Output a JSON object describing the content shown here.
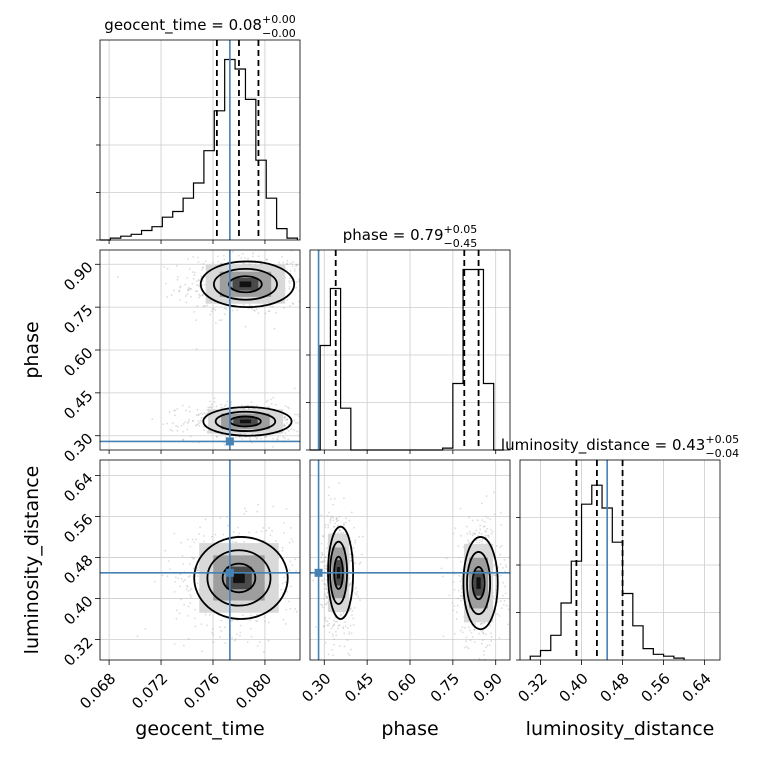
{
  "chart_data": {
    "type": "corner",
    "parameters": [
      "geocent_time",
      "phase",
      "luminosity_distance"
    ],
    "injected_values": {
      "geocent_time": 0.0773,
      "phase": 0.28,
      "luminosity_distance": 0.45
    },
    "axes": {
      "geocent_time": {
        "range": [
          0.0673,
          0.0827
        ],
        "ticks": [
          0.068,
          0.072,
          0.076,
          0.08
        ],
        "tick_labels": [
          "0.068",
          "0.072",
          "0.076",
          "0.080"
        ],
        "xlabel": "geocent_time"
      },
      "phase": {
        "range": [
          0.25,
          0.95
        ],
        "ticks": [
          0.3,
          0.45,
          0.6,
          0.75,
          0.9
        ],
        "tick_labels": [
          "0.30",
          "0.45",
          "0.60",
          "0.75",
          "0.90"
        ],
        "xlabel": "phase",
        "ylabel": "phase"
      },
      "luminosity_distance": {
        "range": [
          0.28,
          0.67
        ],
        "ticks": [
          0.32,
          0.4,
          0.48,
          0.56,
          0.64
        ],
        "tick_labels": [
          "0.32",
          "0.40",
          "0.48",
          "0.56",
          "0.64"
        ],
        "xlabel": "luminosity_distance",
        "ylabel": "luminosity_distance"
      }
    },
    "diagonal": [
      {
        "parameter": "geocent_time",
        "title_main": "geocent_time = 0.08",
        "title_sup": "+0.00",
        "title_sub": "−0.00",
        "quantiles": [
          0.0763,
          0.078,
          0.0795
        ],
        "hist_edges": [
          0.0673,
          0.0681,
          0.0689,
          0.0697,
          0.0705,
          0.0713,
          0.0721,
          0.0729,
          0.0737,
          0.0745,
          0.0753,
          0.0761,
          0.0769,
          0.0777,
          0.0785,
          0.0793,
          0.0801,
          0.0809,
          0.0817,
          0.0825
        ],
        "hist_counts": [
          0,
          0.01,
          0.02,
          0.03,
          0.05,
          0.07,
          0.12,
          0.15,
          0.22,
          0.3,
          0.47,
          0.68,
          0.95,
          0.9,
          0.74,
          0.42,
          0.22,
          0.06,
          0.01
        ]
      },
      {
        "parameter": "phase",
        "title_main": "phase = 0.79",
        "title_sup": "+0.05",
        "title_sub": "−0.45",
        "quantiles": [
          0.34,
          0.79,
          0.84
        ],
        "hist_edges": [
          0.25,
          0.2857,
          0.3214,
          0.3571,
          0.3929,
          0.4286,
          0.4643,
          0.5,
          0.5357,
          0.5714,
          0.6071,
          0.6429,
          0.6786,
          0.7143,
          0.75,
          0.7857,
          0.8214,
          0.8571,
          0.8929,
          0.9286
        ],
        "hist_counts": [
          0,
          0.55,
          0.85,
          0.22,
          0,
          0,
          0,
          0,
          0,
          0,
          0,
          0,
          0,
          0.01,
          0.35,
          0.95,
          0.95,
          0.35,
          0
        ]
      },
      {
        "parameter": "luminosity_distance",
        "title_main": "luminosity_distance = 0.43",
        "title_sup": "+0.05",
        "title_sub": "−0.04",
        "quantiles": [
          0.39,
          0.43,
          0.48
        ],
        "hist_edges": [
          0.3,
          0.32,
          0.34,
          0.36,
          0.38,
          0.4,
          0.42,
          0.44,
          0.46,
          0.48,
          0.5,
          0.52,
          0.54,
          0.56,
          0.58,
          0.6
        ],
        "hist_counts": [
          0.02,
          0.05,
          0.13,
          0.3,
          0.52,
          0.82,
          0.92,
          0.8,
          0.62,
          0.35,
          0.18,
          0.06,
          0.03,
          0.02,
          0.01
        ]
      }
    ],
    "offdiagonal": [
      {
        "x": "geocent_time",
        "y": "phase",
        "blobs": [
          {
            "cx": 0.0785,
            "cy": 0.83,
            "sx": 0.0018,
            "sy": 0.04
          },
          {
            "cx": 0.0785,
            "cy": 0.35,
            "sx": 0.0017,
            "sy": 0.025
          }
        ]
      },
      {
        "x": "geocent_time",
        "y": "luminosity_distance",
        "blobs": [
          {
            "cx": 0.078,
            "cy": 0.44,
            "sx": 0.0018,
            "sy": 0.04
          }
        ]
      },
      {
        "x": "phase",
        "y": "luminosity_distance",
        "blobs": [
          {
            "cx": 0.35,
            "cy": 0.45,
            "sx": 0.022,
            "sy": 0.045
          },
          {
            "cx": 0.84,
            "cy": 0.43,
            "sx": 0.03,
            "sy": 0.045
          }
        ]
      }
    ],
    "colors": {
      "truth": "#4682b4",
      "contour": "#000000",
      "scatter": "#9a9a9a",
      "grid": "#cccccc"
    },
    "grid": true
  }
}
